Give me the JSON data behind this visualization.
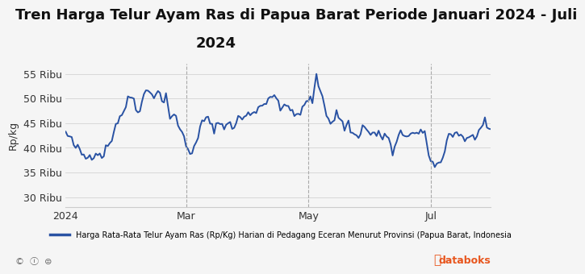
{
  "title_line1": "Tren Harga Telur Ayam Ras di Papua Barat Periode Januari 2024 - Juli",
  "title_line2": "2024",
  "ylabel": "Rp/kg",
  "ytick_labels": [
    "30 Ribu",
    "35 Ribu",
    "40 Ribu",
    "45 Ribu",
    "50 Ribu",
    "55 Ribu"
  ],
  "ytick_values": [
    30000,
    35000,
    40000,
    45000,
    50000,
    55000
  ],
  "ylim": [
    28000,
    57000
  ],
  "line_color": "#2952a3",
  "line_width": 1.4,
  "background_color": "#f5f5f5",
  "plot_bg_color": "#f5f5f5",
  "legend_text": "Harga Rata-Rata Telur Ayam Ras (Rp/Kg) Harian di Pedagang Eceran Menurut Provinsi (Papua Barat, Indonesia",
  "grid_color": "#cccccc",
  "vline_color": "#aaaaaa",
  "xtick_labels": [
    "2024",
    "Mar",
    "May",
    "Jul"
  ],
  "title_fontsize": 13,
  "tick_fontsize": 9
}
